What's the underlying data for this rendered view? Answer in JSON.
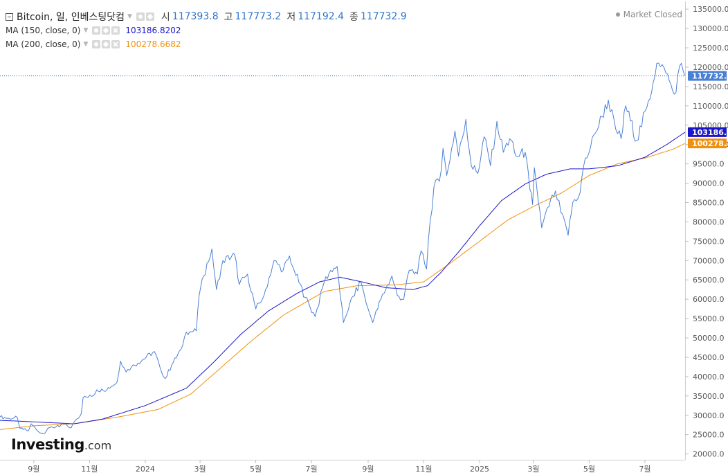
{
  "header": {
    "symbol": "Bitcoin, 일, 인베스팅닷컴",
    "ohlc": [
      {
        "label": "시",
        "value": "117393.8"
      },
      {
        "label": "고",
        "value": "117773.2"
      },
      {
        "label": "저",
        "value": "117192.4"
      },
      {
        "label": "종",
        "value": "117732.9"
      }
    ],
    "status": "Market Closed"
  },
  "indicators": [
    {
      "label": "MA (150, close, 0)",
      "value": "103186.8202",
      "color": "#1b15c9"
    },
    {
      "label": "MA (200, close, 0)",
      "value": "100278.6682",
      "color": "#f0900f"
    }
  ],
  "price_tags": [
    {
      "label": "117732.9",
      "value": 117732.9,
      "color": "#4a80d4"
    },
    {
      "label": "103186.8",
      "value": 103186.8,
      "color": "#1b15c9"
    },
    {
      "label": "100278.7",
      "value": 100278.7,
      "color": "#f0900f"
    }
  ],
  "logo": {
    "main": "Investing",
    "suffix": ".com"
  },
  "colors": {
    "price_line": "#4a80d4",
    "current_line": "#2d55a8",
    "ma150": "#1b15c9",
    "ma200": "#f0900f"
  },
  "chart_data": {
    "type": "line",
    "title": "Bitcoin, 일, 인베스팅닷컴",
    "xlabel": "",
    "ylabel": "",
    "x_range": [
      "2023-07-26",
      "2025-08-14"
    ],
    "ylim": [
      18500,
      137000
    ],
    "y_ticks": [
      20000,
      25000,
      30000,
      35000,
      40000,
      45000,
      50000,
      55000,
      60000,
      65000,
      70000,
      75000,
      80000,
      85000,
      90000,
      95000,
      100000,
      105000,
      110000,
      115000,
      120000,
      125000,
      130000,
      135000
    ],
    "y_tick_labels": [
      "20000.0",
      "25000.0",
      "30000.0",
      "35000.0",
      "40000.0",
      "45000.0",
      "50000.0",
      "55000.0",
      "60000.0",
      "65000.0",
      "70000.0",
      "75000.0",
      "80000.0",
      "85000.0",
      "90000.0",
      "95000.0",
      "100000.0",
      "105000.0",
      "110000.0",
      "115000.0",
      "120000.0",
      "125000.0",
      "130000.0",
      "135000.0"
    ],
    "x_ticks": [
      {
        "label": "9월",
        "date": "2023-09-01"
      },
      {
        "label": "11월",
        "date": "2023-11-01"
      },
      {
        "label": "2024",
        "date": "2024-01-01"
      },
      {
        "label": "3월",
        "date": "2024-03-01"
      },
      {
        "label": "5월",
        "date": "2024-05-01"
      },
      {
        "label": "7월",
        "date": "2024-07-01"
      },
      {
        "label": "9월",
        "date": "2024-09-01"
      },
      {
        "label": "11월",
        "date": "2024-11-01"
      },
      {
        "label": "2025",
        "date": "2025-01-01"
      },
      {
        "label": "3월",
        "date": "2025-03-01"
      },
      {
        "label": "5월",
        "date": "2025-05-01"
      },
      {
        "label": "7월",
        "date": "2025-07-01"
      }
    ],
    "current_price": 117732.9,
    "grid": false,
    "series": [
      {
        "name": "Bitcoin",
        "color": "#4a80d4",
        "points": [
          [
            "2023-07-26",
            29600
          ],
          [
            "2023-08-05",
            29200
          ],
          [
            "2023-08-14",
            29400
          ],
          [
            "2023-08-17",
            26600
          ],
          [
            "2023-08-26",
            26000
          ],
          [
            "2023-08-29",
            27800
          ],
          [
            "2023-09-06",
            25800
          ],
          [
            "2023-09-11",
            25200
          ],
          [
            "2023-09-20",
            27000
          ],
          [
            "2023-09-29",
            27000
          ],
          [
            "2023-10-02",
            27900
          ],
          [
            "2023-10-12",
            26800
          ],
          [
            "2023-10-16",
            28500
          ],
          [
            "2023-10-23",
            30500
          ],
          [
            "2023-10-25",
            34500
          ],
          [
            "2023-11-05",
            35000
          ],
          [
            "2023-11-09",
            36600
          ],
          [
            "2023-11-16",
            36400
          ],
          [
            "2023-11-25",
            37500
          ],
          [
            "2023-12-01",
            38500
          ],
          [
            "2023-12-05",
            44000
          ],
          [
            "2023-12-11",
            41200
          ],
          [
            "2023-12-17",
            42500
          ],
          [
            "2023-12-24",
            43500
          ],
          [
            "2024-01-02",
            45000
          ],
          [
            "2024-01-11",
            46500
          ],
          [
            "2024-01-17",
            42500
          ],
          [
            "2024-01-23",
            39500
          ],
          [
            "2024-01-30",
            43000
          ],
          [
            "2024-02-09",
            47000
          ],
          [
            "2024-02-15",
            51500
          ],
          [
            "2024-02-26",
            51800
          ],
          [
            "2024-02-29",
            61000
          ],
          [
            "2024-03-05",
            66000
          ],
          [
            "2024-03-14",
            73000
          ],
          [
            "2024-03-19",
            62500
          ],
          [
            "2024-03-26",
            70000
          ],
          [
            "2024-04-08",
            71500
          ],
          [
            "2024-04-13",
            63800
          ],
          [
            "2024-04-22",
            66500
          ],
          [
            "2024-05-01",
            57500
          ],
          [
            "2024-05-10",
            61000
          ],
          [
            "2024-05-21",
            70000
          ],
          [
            "2024-05-31",
            67500
          ],
          [
            "2024-06-07",
            71200
          ],
          [
            "2024-06-12",
            67500
          ],
          [
            "2024-06-24",
            60500
          ],
          [
            "2024-07-05",
            55500
          ],
          [
            "2024-07-15",
            64500
          ],
          [
            "2024-07-22",
            67500
          ],
          [
            "2024-07-29",
            68500
          ],
          [
            "2024-08-05",
            54000
          ],
          [
            "2024-08-12",
            59000
          ],
          [
            "2024-08-24",
            64500
          ],
          [
            "2024-09-01",
            57500
          ],
          [
            "2024-09-06",
            54000
          ],
          [
            "2024-09-15",
            60000
          ],
          [
            "2024-09-27",
            66000
          ],
          [
            "2024-10-03",
            61000
          ],
          [
            "2024-10-10",
            60000
          ],
          [
            "2024-10-16",
            67500
          ],
          [
            "2024-10-25",
            66500
          ],
          [
            "2024-10-29",
            72500
          ],
          [
            "2024-11-04",
            67800
          ],
          [
            "2024-11-06",
            75500
          ],
          [
            "2024-11-12",
            89000
          ],
          [
            "2024-11-18",
            90500
          ],
          [
            "2024-11-22",
            99000
          ],
          [
            "2024-11-26",
            92000
          ],
          [
            "2024-12-05",
            103500
          ],
          [
            "2024-12-09",
            97000
          ],
          [
            "2024-12-17",
            106500
          ],
          [
            "2024-12-23",
            94500
          ],
          [
            "2024-12-30",
            92500
          ],
          [
            "2025-01-06",
            102000
          ],
          [
            "2025-01-13",
            94500
          ],
          [
            "2025-01-20",
            106000
          ],
          [
            "2025-01-27",
            98000
          ],
          [
            "2025-02-03",
            101500
          ],
          [
            "2025-02-10",
            97000
          ],
          [
            "2025-02-20",
            98000
          ],
          [
            "2025-02-25",
            88500
          ],
          [
            "2025-02-28",
            84500
          ],
          [
            "2025-03-02",
            94000
          ],
          [
            "2025-03-10",
            78500
          ],
          [
            "2025-03-18",
            84000
          ],
          [
            "2025-03-25",
            88000
          ],
          [
            "2025-03-31",
            82500
          ],
          [
            "2025-04-08",
            76500
          ],
          [
            "2025-04-13",
            85000
          ],
          [
            "2025-04-21",
            87500
          ],
          [
            "2025-04-25",
            94500
          ],
          [
            "2025-05-08",
            103000
          ],
          [
            "2025-05-22",
            111500
          ],
          [
            "2025-05-30",
            104000
          ],
          [
            "2025-06-05",
            101500
          ],
          [
            "2025-06-10",
            110000
          ],
          [
            "2025-06-22",
            101000
          ],
          [
            "2025-07-03",
            109500
          ],
          [
            "2025-07-10",
            116000
          ],
          [
            "2025-07-14",
            121000
          ],
          [
            "2025-07-24",
            118500
          ],
          [
            "2025-08-02",
            113000
          ],
          [
            "2025-08-10",
            121000
          ],
          [
            "2025-08-14",
            117732.9
          ]
        ]
      },
      {
        "name": "MA (150, close, 0)",
        "color": "#1b15c9",
        "points": [
          [
            "2023-07-26",
            28700
          ],
          [
            "2023-09-01",
            28300
          ],
          [
            "2023-10-15",
            27800
          ],
          [
            "2023-11-15",
            29000
          ],
          [
            "2024-01-01",
            32500
          ],
          [
            "2024-02-15",
            37000
          ],
          [
            "2024-03-15",
            43500
          ],
          [
            "2024-04-15",
            51000
          ],
          [
            "2024-05-15",
            57000
          ],
          [
            "2024-06-15",
            61500
          ],
          [
            "2024-07-10",
            64500
          ],
          [
            "2024-08-01",
            65700
          ],
          [
            "2024-08-25",
            64500
          ],
          [
            "2024-09-20",
            63000
          ],
          [
            "2024-10-20",
            62500
          ],
          [
            "2024-11-05",
            63500
          ],
          [
            "2024-11-20",
            67000
          ],
          [
            "2024-12-10",
            72500
          ],
          [
            "2025-01-01",
            79000
          ],
          [
            "2025-01-25",
            85500
          ],
          [
            "2025-02-20",
            89800
          ],
          [
            "2025-03-15",
            92300
          ],
          [
            "2025-04-10",
            93700
          ],
          [
            "2025-05-01",
            93700
          ],
          [
            "2025-06-01",
            94500
          ],
          [
            "2025-07-01",
            96700
          ],
          [
            "2025-07-25",
            100000
          ],
          [
            "2025-08-14",
            103186.8
          ]
        ]
      },
      {
        "name": "MA (200, close, 0)",
        "color": "#f0900f",
        "points": [
          [
            "2023-07-26",
            26300
          ],
          [
            "2023-09-01",
            27300
          ],
          [
            "2023-10-15",
            27800
          ],
          [
            "2023-12-01",
            29500
          ],
          [
            "2024-01-15",
            31500
          ],
          [
            "2024-02-20",
            35500
          ],
          [
            "2024-03-20",
            41500
          ],
          [
            "2024-04-25",
            49000
          ],
          [
            "2024-06-01",
            56000
          ],
          [
            "2024-07-15",
            62000
          ],
          [
            "2024-08-20",
            63500
          ],
          [
            "2024-10-01",
            63700
          ],
          [
            "2024-11-01",
            64500
          ],
          [
            "2024-12-01",
            69500
          ],
          [
            "2025-01-01",
            75000
          ],
          [
            "2025-02-01",
            80500
          ],
          [
            "2025-03-01",
            84000
          ],
          [
            "2025-04-01",
            87500
          ],
          [
            "2025-05-01",
            92000
          ],
          [
            "2025-06-01",
            95000
          ],
          [
            "2025-07-01",
            96500
          ],
          [
            "2025-08-01",
            98800
          ],
          [
            "2025-08-14",
            100278.7
          ]
        ]
      }
    ]
  }
}
